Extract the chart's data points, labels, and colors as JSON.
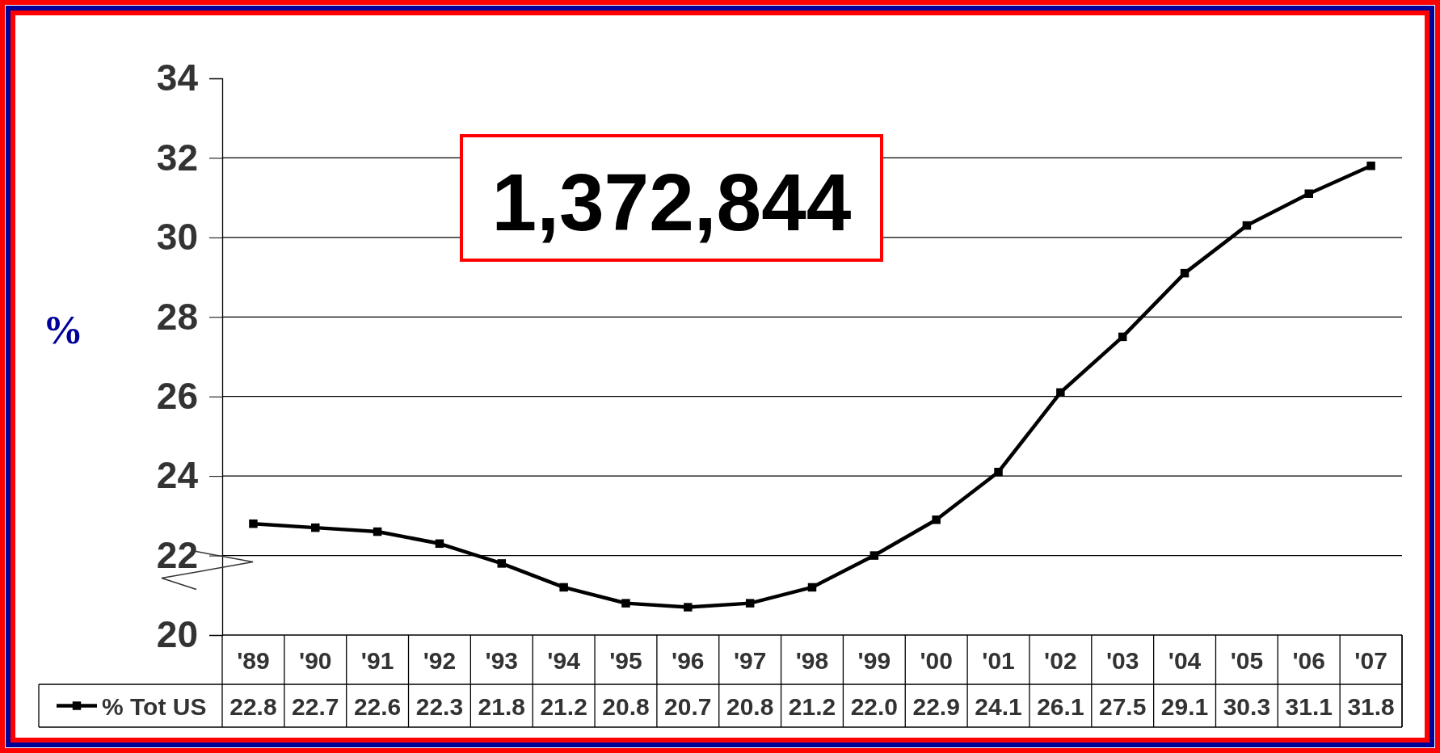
{
  "chart_data": {
    "type": "line",
    "ylabel": "%",
    "annotations": [
      "1,372,844"
    ],
    "categories": [
      "'89",
      "'90",
      "'91",
      "'92",
      "'93",
      "'94",
      "'95",
      "'96",
      "'97",
      "'98",
      "'99",
      "'00",
      "'01",
      "'02",
      "'03",
      "'04",
      "'05",
      "'06",
      "'07"
    ],
    "series": [
      {
        "name": "% Tot US",
        "color": "#000000",
        "values": [
          22.8,
          22.7,
          22.6,
          22.3,
          21.8,
          21.2,
          20.8,
          20.7,
          20.8,
          21.2,
          22.0,
          22.9,
          24.1,
          26.1,
          27.5,
          29.1,
          30.3,
          31.1,
          31.8
        ],
        "value_labels": [
          "22.8",
          "22.7",
          "22.6",
          "22.3",
          "21.8",
          "21.2",
          "20.8",
          "20.7",
          "20.8",
          "21.2",
          "22.0",
          "22.9",
          "24.1",
          "26.1",
          "27.5",
          "29.1",
          "30.3",
          "31.1",
          "31.8"
        ]
      }
    ],
    "ylim": [
      20,
      34
    ],
    "yticks": [
      20,
      22,
      24,
      26,
      28,
      30,
      32,
      34
    ],
    "grid": "y",
    "legend": "bottom",
    "marker": "square",
    "line_style": "solid"
  }
}
